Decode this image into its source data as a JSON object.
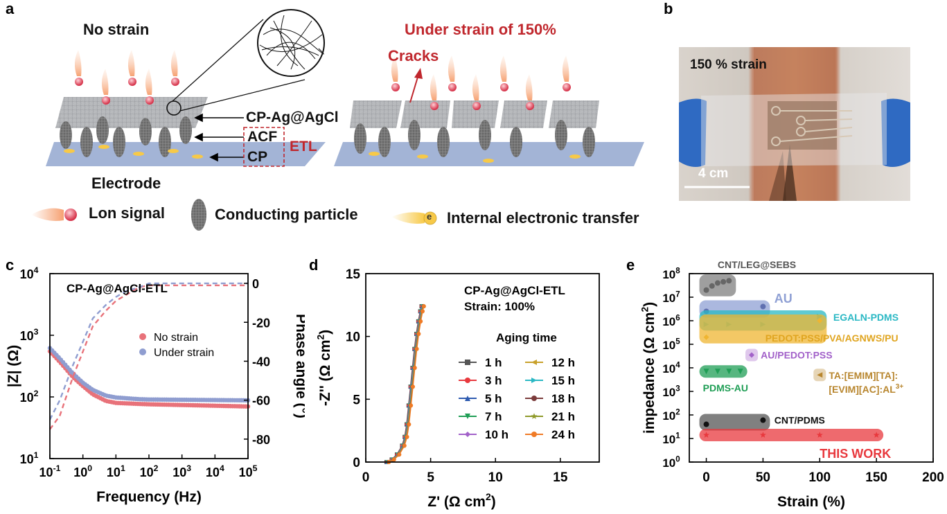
{
  "panels": {
    "a": {
      "letter": "a",
      "no_strain": "No strain",
      "under_strain": "Under strain of 150%",
      "cracks": "Cracks",
      "layer_cp_ag": "CP-Ag@AgCl",
      "layer_acf": "ACF",
      "layer_cp": "CP",
      "etl": "ETL",
      "electrode": "Electrode",
      "legend": [
        {
          "label": "Lon signal",
          "icon": "ion-signal-icon"
        },
        {
          "label": "Conducting particle",
          "icon": "conducting-particle-icon"
        },
        {
          "label": "Internal electronic transfer",
          "icon": "electron-transfer-icon",
          "glyph": "e"
        }
      ]
    },
    "b": {
      "letter": "b",
      "strain_label": "150 % strain",
      "scale_bar": "4 cm"
    },
    "c": {
      "letter": "c"
    },
    "d": {
      "letter": "d"
    },
    "e": {
      "letter": "e"
    }
  },
  "colors": {
    "no_strain": "#e8727a",
    "under_strain": "#8f9dd0",
    "label_red": "#c0272d",
    "grey_layer": "#b8babd",
    "blue_layer": "#a3b4d6",
    "particle": "#6b6b6b",
    "ion_red": "#d6334a",
    "flame": "#f6a172",
    "electron_yellow": "#f7c948"
  },
  "chart_data": [
    {
      "id": "c",
      "type": "line",
      "annotation": "CP-Ag@AgCl-ETL",
      "xlabel": "Frequency (Hz)",
      "ylabel": "|Z| (Ω)",
      "ylabel_right": "Phase angle (°)",
      "x_scale": "log",
      "y_scale": "log",
      "xlim": [
        0.1,
        100000
      ],
      "ylim": [
        10,
        10000
      ],
      "ylim_right": [
        -90,
        5
      ],
      "x_ticks": [
        0.1,
        1,
        10,
        100,
        1000,
        10000,
        100000
      ],
      "x_tick_labels": [
        [
          "10",
          "-1"
        ],
        [
          "10",
          "0"
        ],
        [
          "10",
          "1"
        ],
        [
          "10",
          "2"
        ],
        [
          "10",
          "3"
        ],
        [
          "10",
          "4"
        ],
        [
          "10",
          "5"
        ]
      ],
      "y_ticks": [
        10,
        100,
        1000,
        10000
      ],
      "y_tick_labels": [
        [
          "10",
          "1"
        ],
        [
          "10",
          "2"
        ],
        [
          "10",
          "3"
        ],
        [
          "10",
          "4"
        ]
      ],
      "y_right_ticks": [
        0,
        -20,
        -40,
        -60,
        -80
      ],
      "y_right_tick_labels": [
        "0",
        "-20",
        "-40",
        "-60",
        "-80"
      ],
      "legend_position": "center-right",
      "series": [
        {
          "name": "No strain",
          "axis": "left",
          "style": "markers",
          "x": [
            0.1,
            0.2,
            0.5,
            1,
            2,
            5,
            10,
            50,
            100,
            1000,
            10000,
            100000
          ],
          "y": [
            550,
            370,
            210,
            150,
            110,
            86,
            80,
            77,
            76,
            74,
            72,
            70
          ]
        },
        {
          "name": "Under strain",
          "axis": "left",
          "style": "markers",
          "x": [
            0.1,
            0.2,
            0.5,
            1,
            2,
            5,
            10,
            50,
            100,
            1000,
            10000,
            100000
          ],
          "y": [
            620,
            420,
            240,
            170,
            130,
            105,
            98,
            92,
            91,
            90,
            89,
            88
          ]
        },
        {
          "name": "",
          "axis": "right",
          "style": "dashed",
          "color_of": "No strain",
          "x": [
            0.1,
            0.2,
            0.5,
            1,
            2,
            5,
            10,
            20,
            50,
            100,
            1000,
            10000,
            100000
          ],
          "y": [
            -75,
            -68,
            -48,
            -35,
            -22,
            -14,
            -9,
            -6,
            -2,
            -1,
            -1,
            -1,
            -1
          ]
        },
        {
          "name": "",
          "axis": "right",
          "style": "dashed",
          "color_of": "Under strain",
          "x": [
            0.1,
            0.2,
            0.5,
            1,
            2,
            5,
            10,
            20,
            50,
            100,
            1000,
            10000,
            100000
          ],
          "y": [
            -70,
            -60,
            -42,
            -30,
            -18,
            -11,
            -7,
            -4,
            -2,
            0,
            0,
            0,
            0
          ]
        }
      ]
    },
    {
      "id": "d",
      "type": "line",
      "annotation": [
        "CP-Ag@AgCl-ETL",
        "Strain: 100%"
      ],
      "legend_title": "Aging time",
      "xlabel": "Z' (Ω cm",
      "xlabel_sup": "2",
      "ylabel": "-Z'' (Ω cm",
      "ylabel_sup": "2",
      "xlim": [
        0,
        18
      ],
      "ylim": [
        0,
        15
      ],
      "x_ticks": [
        0,
        5,
        10,
        15
      ],
      "y_ticks": [
        0,
        5,
        10,
        15
      ],
      "curve_x": [
        1.6,
        2.0,
        2.4,
        2.8,
        3.0,
        3.15,
        3.3,
        3.45,
        3.6,
        3.75,
        3.9,
        4.05,
        4.2,
        4.3
      ],
      "curve_y": [
        0,
        0.2,
        0.6,
        1.3,
        2.0,
        3.0,
        4.5,
        6.0,
        7.5,
        9.0,
        10.2,
        11.2,
        12.0,
        12.4
      ],
      "series": [
        {
          "name": "1 h",
          "color": "#555555",
          "marker": "square",
          "dx": 0.0
        },
        {
          "name": "3 h",
          "color": "#e8383d",
          "marker": "circle",
          "dx": 0.02
        },
        {
          "name": "5 h",
          "color": "#2e5bb0",
          "marker": "triangle-up",
          "dx": 0.04
        },
        {
          "name": "7 h",
          "color": "#1f9e55",
          "marker": "triangle-down",
          "dx": 0.06
        },
        {
          "name": "10 h",
          "color": "#a261c9",
          "marker": "diamond",
          "dx": 0.08
        },
        {
          "name": "12 h",
          "color": "#c8a02a",
          "marker": "triangle-left",
          "dx": 0.1
        },
        {
          "name": "15 h",
          "color": "#2ab8c4",
          "marker": "triangle-right",
          "dx": 0.12
        },
        {
          "name": "18 h",
          "color": "#7b3b3b",
          "marker": "circle",
          "dx": 0.14
        },
        {
          "name": "21 h",
          "color": "#8f9a2a",
          "marker": "star",
          "dx": 0.16
        },
        {
          "name": "24 h",
          "color": "#f07b26",
          "marker": "circle",
          "dx": 0.18
        }
      ]
    },
    {
      "id": "e",
      "type": "scatter",
      "xlabel": "Strain (%)",
      "ylabel": "impedance (Ω cm",
      "ylabel_sup": "2",
      "x_scale": "linear",
      "y_scale": "log",
      "xlim": [
        -15,
        200
      ],
      "ylim": [
        1,
        100000000
      ],
      "x_ticks": [
        0,
        50,
        100,
        150,
        200
      ],
      "y_ticks": [
        1,
        10,
        100,
        1000,
        10000,
        100000,
        1000000,
        10000000,
        100000000
      ],
      "y_tick_labels": [
        [
          "10",
          "0"
        ],
        [
          "10",
          "1"
        ],
        [
          "10",
          "2"
        ],
        [
          "10",
          "3"
        ],
        [
          "10",
          "4"
        ],
        [
          "10",
          "5"
        ],
        [
          "10",
          "6"
        ],
        [
          "10",
          "7"
        ],
        [
          "10",
          "8"
        ]
      ],
      "series": [
        {
          "name": "CNT/LEG@SEBS",
          "color": "#7f7f7f",
          "marker": "circle",
          "x": [
            0,
            5,
            10,
            15,
            20
          ],
          "y": [
            20000000,
            30000000,
            40000000,
            45000000,
            50000000
          ]
        },
        {
          "name": "AU",
          "color": "#8fa0d4",
          "marker": "circle",
          "x": [
            0,
            50
          ],
          "y": [
            2500000,
            4000000
          ]
        },
        {
          "name": "EGALN-PDMS",
          "color": "#2ab8c4",
          "marker": "triangle-right",
          "x": [
            0,
            20,
            50,
            100
          ],
          "y": [
            700000,
            700000,
            700000,
            1500000
          ]
        },
        {
          "name": "PEDOT:PSS/PVA/AGNWS/PU",
          "color": "#efb531",
          "marker": "diamond",
          "x": [
            0,
            100
          ],
          "y": [
            200000,
            1000000
          ]
        },
        {
          "name": "AU/PEDOT:PSS",
          "color": "#a261c9",
          "marker": "diamond",
          "x": [
            40
          ],
          "y": [
            35000
          ]
        },
        {
          "name": "PDMS-AU",
          "color": "#1f9e55",
          "marker": "triangle-down",
          "x": [
            0,
            10,
            20,
            30
          ],
          "y": [
            7000,
            7000,
            7000,
            7000
          ]
        },
        {
          "name": "TA:[EMIM][TA]:[EVIM][AC]:AL3+",
          "display_lines": [
            "TA:[EMIM][TA]:",
            "[EVIM][AC]:AL"
          ],
          "display_sup": "3+",
          "color": "#b8862e",
          "marker": "triangle-left",
          "x": [
            100
          ],
          "y": [
            5000
          ]
        },
        {
          "name": "CNT/PDMS",
          "color": "#555555",
          "marker": "circle",
          "x": [
            0,
            50
          ],
          "y": [
            40,
            60
          ]
        },
        {
          "name": "THIS WORK",
          "color": "#e8383d",
          "marker": "star",
          "x": [
            0,
            50,
            100,
            150
          ],
          "y": [
            14,
            14,
            14,
            14
          ]
        }
      ]
    }
  ]
}
